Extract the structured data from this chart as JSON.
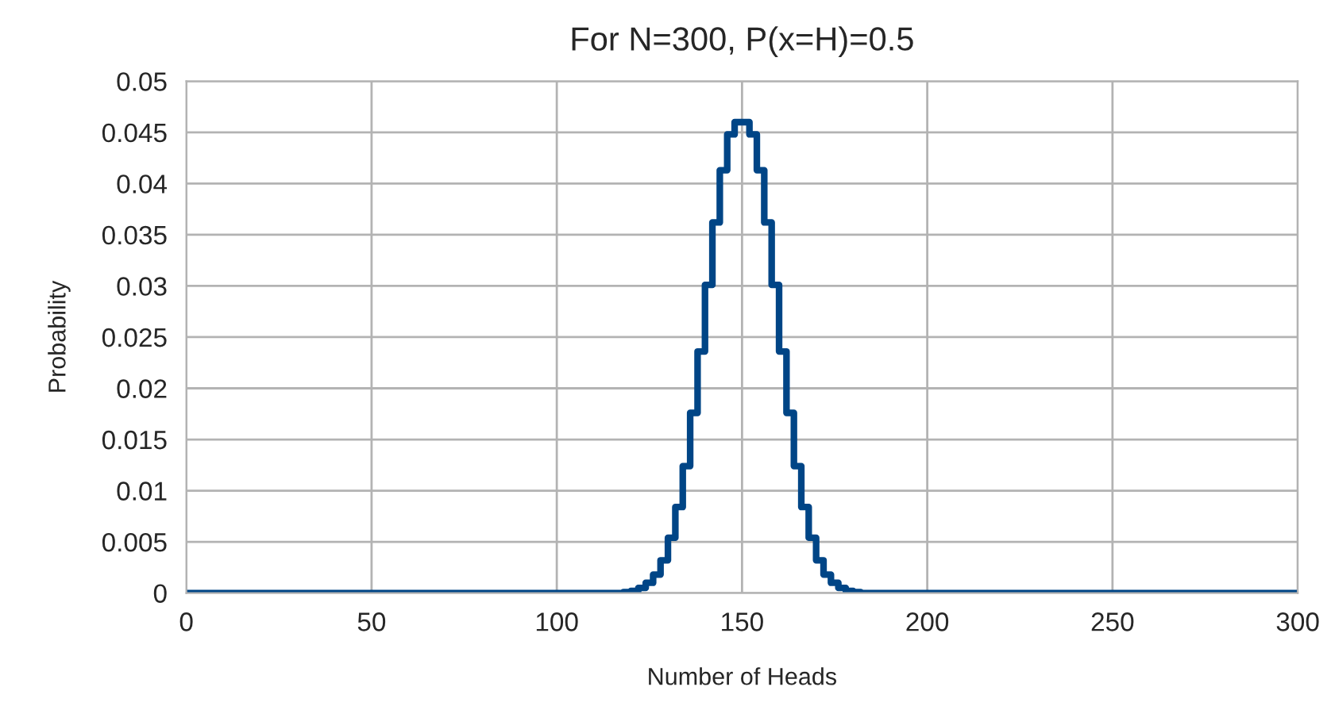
{
  "chart_data": {
    "type": "step",
    "title": "For N=300, P(x=H)=0.5",
    "xlabel": "Number of Heads",
    "ylabel": "Probability",
    "x": [
      0,
      100,
      118,
      120,
      122,
      124,
      126,
      128,
      130,
      132,
      134,
      136,
      138,
      140,
      142,
      144,
      146,
      148,
      150,
      152,
      154,
      156,
      158,
      160,
      162,
      164,
      166,
      168,
      170,
      172,
      174,
      176,
      178,
      180,
      182,
      200,
      300
    ],
    "series": [
      {
        "color": "#004586",
        "values": [
          0,
          0,
          0.0001,
          0.0002,
          0.0005,
          0.001,
          0.0018,
          0.0032,
          0.0054,
          0.0084,
          0.0124,
          0.0176,
          0.0236,
          0.0301,
          0.0362,
          0.0413,
          0.0448,
          0.046,
          0.046,
          0.0448,
          0.0413,
          0.0362,
          0.0301,
          0.0236,
          0.0176,
          0.0124,
          0.0084,
          0.0054,
          0.0032,
          0.0018,
          0.001,
          0.0005,
          0.0002,
          0.0001,
          0,
          0,
          0
        ]
      }
    ],
    "xlim": [
      0,
      300
    ],
    "xticks": [
      0,
      50,
      100,
      150,
      200,
      250,
      300
    ],
    "ylim": [
      0,
      0.05
    ],
    "yticks": [
      0,
      0.005,
      0.01,
      0.015,
      0.02,
      0.025,
      0.03,
      0.035,
      0.04,
      0.045,
      0.05
    ],
    "grid": true,
    "line_style": "solid"
  }
}
